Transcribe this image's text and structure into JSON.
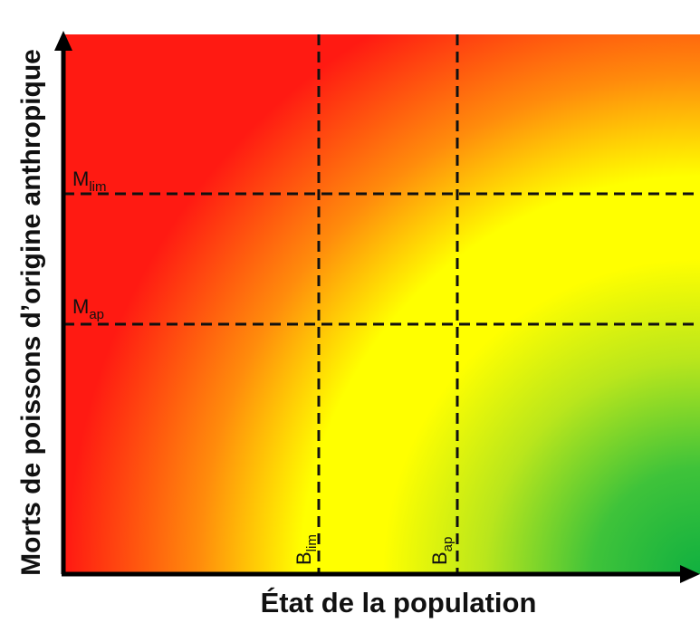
{
  "diagram": {
    "y_axis_label": "Morts de poissons d’origine anthropique",
    "x_axis_label": "État de la population",
    "thresholds": {
      "m_lim": {
        "base": "M",
        "sub": "lim"
      },
      "m_ap": {
        "base": "M",
        "sub": "ap"
      },
      "b_lim": {
        "base": "B",
        "sub": "lim"
      },
      "b_ap": {
        "base": "B",
        "sub": "ap"
      }
    },
    "zone_colors": {
      "danger": "#ff1a12",
      "caution": "#ffff00",
      "healthy": "#10b040"
    }
  }
}
